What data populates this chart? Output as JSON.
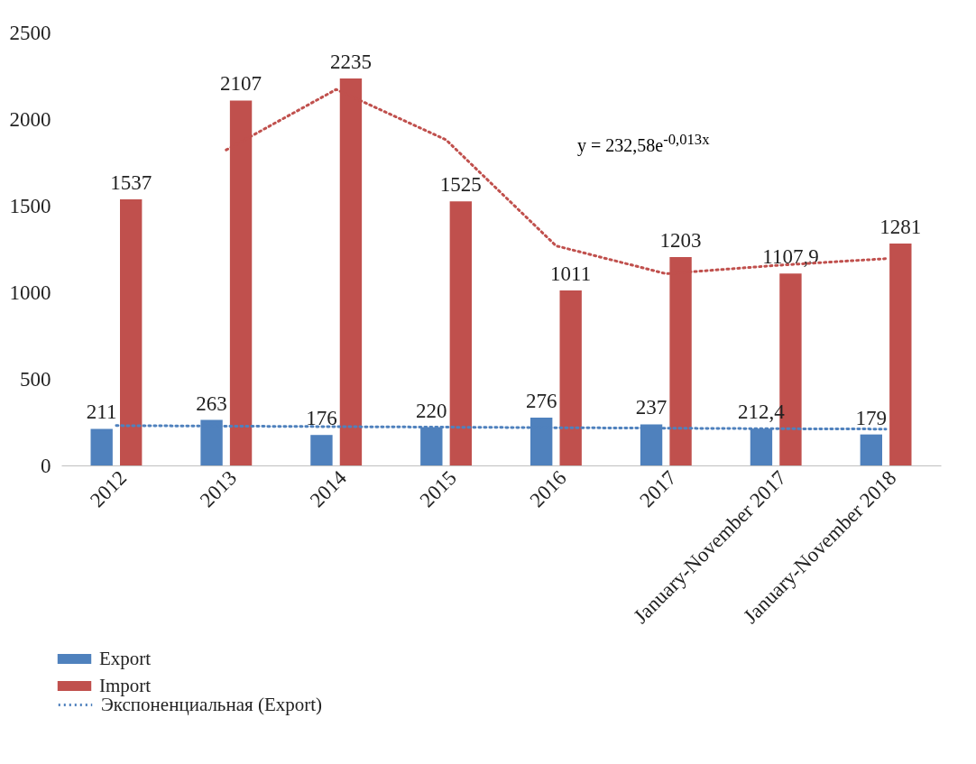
{
  "chart_data": {
    "type": "bar",
    "categories": [
      "2012",
      "2013",
      "2014",
      "2015",
      "2016",
      "2017",
      "January-November 2017",
      "January-November 2018"
    ],
    "ylim": [
      0,
      2500
    ],
    "yticks": [
      0,
      500,
      1000,
      1500,
      2000,
      2500
    ],
    "grid": false,
    "legend": "bottom left",
    "annotations": [
      "y = 232,58e$^{-0,013x}$"
    ],
    "series": [
      {
        "name": "Export",
        "color": "#4f81bd",
        "values": [
          211,
          263,
          176,
          220,
          276,
          237,
          212.4,
          179
        ],
        "value_labels": [
          "211",
          "263",
          "176",
          "220",
          "276",
          "237",
          "212,4",
          "179"
        ]
      },
      {
        "name": "Import",
        "color": "#c0504d",
        "values": [
          1537,
          2107,
          2235,
          1525,
          1011,
          1203,
          1107.9,
          1281
        ],
        "value_labels": [
          "1537",
          "2107",
          "2235",
          "1525",
          "1011",
          "1203",
          "1107,9",
          "1281"
        ]
      },
      {
        "name": "Экспоненциальная (Export)",
        "type": "line",
        "line_style": "dotted",
        "color": "#4f81bd",
        "values": [
          230,
          227,
          224,
          221,
          218,
          215,
          212,
          210
        ]
      },
      {
        "type": "line",
        "line_style": "dotted",
        "color": "#c0504d",
        "values": [
          null,
          1822,
          2171,
          1880,
          1268,
          1107,
          1155,
          1194
        ]
      }
    ]
  }
}
